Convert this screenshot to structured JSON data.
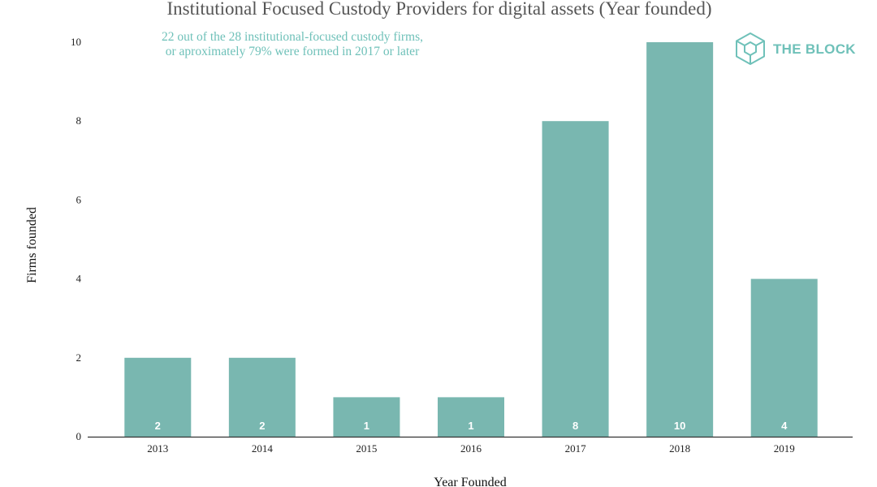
{
  "colors": {
    "bar": "#79b7b0",
    "accent": "#6fc1b9",
    "axis": "#333333",
    "text": "#222222",
    "title": "#555555"
  },
  "brand": {
    "name": "THE BLOCK",
    "icon": "cube-hexagon-icon"
  },
  "chart_data": {
    "type": "bar",
    "title": "Institutional Focused Custody Providers for digital assets (Year founded)",
    "annotation": [
      "22 out of the 28 institutional-focused custody firms,",
      "or aproximately 79% were formed in 2017 or later"
    ],
    "xlabel": "Year Founded",
    "ylabel": "Firms founded",
    "categories": [
      "2013",
      "2014",
      "2015",
      "2016",
      "2017",
      "2018",
      "2019"
    ],
    "values": [
      2,
      2,
      1,
      1,
      8,
      10,
      4
    ],
    "data_labels": [
      "2",
      "2",
      "1",
      "1",
      "8",
      "10",
      "4"
    ],
    "ylim": [
      0,
      10
    ],
    "yticks": [
      0,
      2,
      4,
      6,
      8,
      10
    ],
    "grid": false,
    "legend": "none"
  }
}
